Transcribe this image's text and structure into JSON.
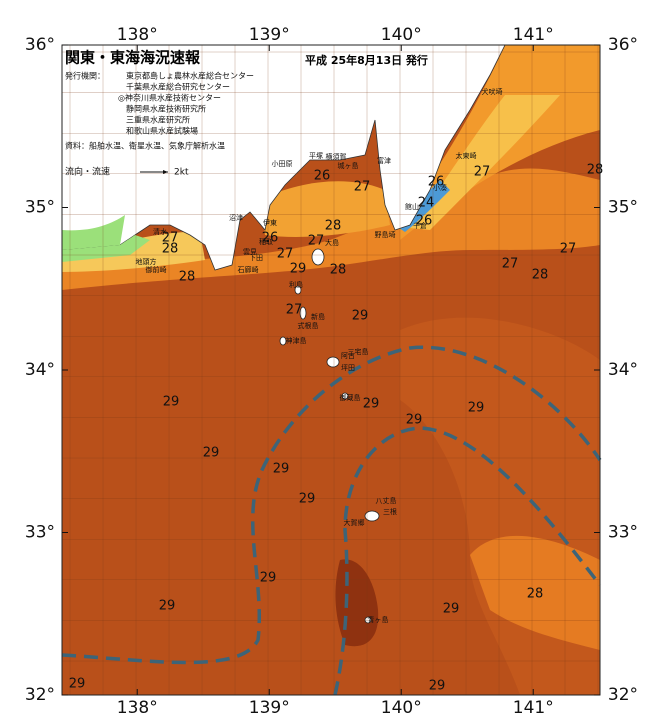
{
  "map": {
    "title": "関東・東海海況速報",
    "issue_date": "平成 25年8月13日 発行",
    "issuer_label": "発行機関：",
    "issuers": [
      "東京都島しょ農林水産総合センター",
      "千葉県水産総合研究センター",
      "◎神奈川県水産技術センター",
      "静岡県水産技術研究所",
      "三重県水産研究所",
      "和歌山県水産試験場"
    ],
    "source": "資料：船舶水温、衛星水温、気象庁解析水温",
    "legend": {
      "label": "流向・流速",
      "speed": "2kt"
    },
    "lon_ticks": [
      {
        "value": 138,
        "label": "138°"
      },
      {
        "value": 139,
        "label": "139°"
      },
      {
        "value": 140,
        "label": "140°"
      },
      {
        "value": 141,
        "label": "141°"
      }
    ],
    "lat_ticks": [
      {
        "value": 36,
        "label": "36°"
      },
      {
        "value": 35,
        "label": "35°"
      },
      {
        "value": 34,
        "label": "34°"
      },
      {
        "value": 33,
        "label": "33°"
      },
      {
        "value": 32,
        "label": "32°"
      }
    ],
    "temperatures": [
      28,
      27,
      26,
      27,
      26,
      24,
      26,
      28,
      27,
      26,
      27,
      29,
      28,
      27,
      28,
      28,
      27,
      27,
      28,
      27,
      29,
      29,
      29,
      29,
      29,
      29,
      29,
      29,
      29,
      28,
      29,
      29,
      29,
      29
    ],
    "places": [
      "犬吠埼",
      "太東崎",
      "小湊",
      "館山",
      "千倉",
      "野島埼",
      "富津",
      "横須賀",
      "城ヶ島",
      "平塚",
      "小田原",
      "伊東",
      "稲取",
      "下田",
      "石廊崎",
      "雲見",
      "沼津",
      "清水",
      "御前崎",
      "地頭方",
      "大島",
      "利島",
      "新島",
      "式根島",
      "神津島",
      "三宅島",
      "阿古",
      "坪田",
      "御蔵島",
      "八丈島",
      "大賀郷",
      "三根",
      "青ヶ島"
    ]
  }
}
